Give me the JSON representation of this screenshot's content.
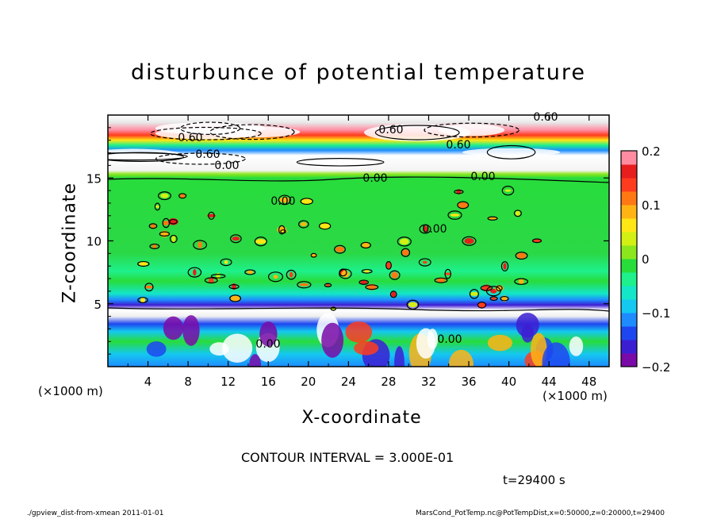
{
  "chart_data": {
    "type": "heatmap",
    "title": "disturbunce of potential temperature",
    "xlabel": "X-coordinate",
    "ylabel": "Z-coordinate",
    "x_unit_label_left": "(×1000 m)",
    "x_unit_label_right": "(×1000 m)",
    "xlim": [
      0,
      50
    ],
    "ylim": [
      0,
      20
    ],
    "x_ticks": [
      "4",
      "8",
      "12",
      "16",
      "20",
      "24",
      "28",
      "32",
      "36",
      "40",
      "44",
      "48"
    ],
    "y_ticks": [
      "5",
      "10",
      "15"
    ],
    "colorbar": {
      "range": [
        -0.2,
        0.2
      ],
      "ticks": [
        "0.2",
        "0.1",
        "0",
        "−0.1",
        "−0.2"
      ],
      "colors": [
        "#7a0aa8",
        "#3c1ed2",
        "#1e46f0",
        "#1e8cff",
        "#14c8f0",
        "#14e6c8",
        "#1ef08c",
        "#28dc3c",
        "#8ce61e",
        "#d2f014",
        "#ffe614",
        "#ffb414",
        "#ff7814",
        "#ff3c1e",
        "#e61e1e",
        "#ff8ca0"
      ]
    },
    "contour_labels": [
      "0.60",
      "0.60",
      "0.60",
      "0.60",
      "0.00",
      "0.00",
      "0.60",
      "0.00",
      "0.00",
      "0.00",
      "0.00",
      "0.00"
    ],
    "contour_interval": "CONTOUR INTERVAL = 3.000E-01",
    "time": "t=29400 s",
    "footer_left": "./gpview_dist-from-xmean  2011-01-01",
    "footer_right": "MarsCond_PotTemp.nc@PotTempDist,x=0:50000,z=0:20000,t=29400"
  }
}
